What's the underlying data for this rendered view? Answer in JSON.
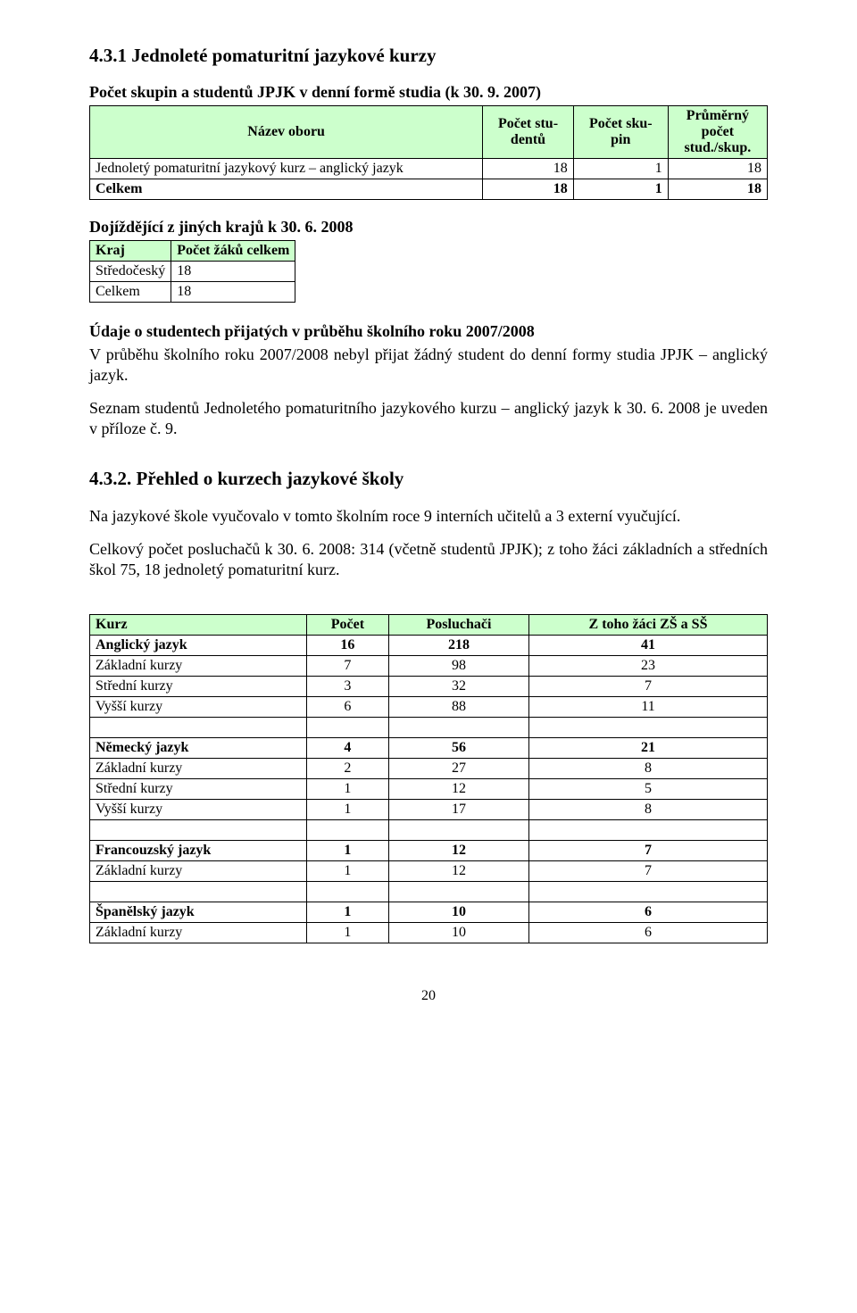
{
  "colors": {
    "header_bg": "#ccffcc",
    "text": "#000000",
    "border": "#000000",
    "background": "#ffffff"
  },
  "section_title": "4.3.1 Jednoleté pomaturitní jazykové kurzy",
  "lead1": "Počet skupin a studentů JPJK v denní formě studia (k 30. 9. 2007)",
  "table1": {
    "headers": [
      "Název oboru",
      "Počet stu-dentů",
      "Počet sku-pin",
      "Průměrný počet stud./skup."
    ],
    "rows": [
      {
        "cells": [
          "Jednoletý pomaturitní jazykový kurz – anglický jazyk",
          "18",
          "1",
          "18"
        ],
        "bold": false
      },
      {
        "cells": [
          "Celkem",
          "18",
          "1",
          "18"
        ],
        "bold": true
      }
    ]
  },
  "lead2": "Dojíždějící z jiných krajů k 30. 6. 2008",
  "table2": {
    "headers": [
      "Kraj",
      "Počet žáků celkem"
    ],
    "rows": [
      [
        "Středočeský",
        "18"
      ],
      [
        "Celkem",
        "18"
      ]
    ]
  },
  "sub_heading": "Údaje o studentech přijatých v průběhu školního roku 2007/2008",
  "para1": "V průběhu školního roku 2007/2008 nebyl přijat žádný student do denní formy studia JPJK – anglický jazyk.",
  "para2": "Seznam studentů Jednoletého pomaturitního jazykového kurzu – anglický jazyk k 30. 6. 2008 je uveden v příloze č. 9.",
  "section_title2": "4.3.2. Přehled o kurzech jazykové školy",
  "para3": "Na jazykové škole vyučovalo v tomto školním roce 9 interních učitelů a 3 externí vyučující.",
  "para4": "Celkový počet posluchačů k 30. 6. 2008: 314 (včetně studentů JPJK); z toho žáci základních a středních škol 75, 18 jednoletý pomaturitní kurz.",
  "table3": {
    "headers": [
      "Kurz",
      "Počet",
      "Posluchači",
      "Z toho žáci ZŠ a SŠ"
    ],
    "rows": [
      {
        "type": "group",
        "cells": [
          "Anglický jazyk",
          "16",
          "218",
          "41"
        ]
      },
      {
        "type": "row",
        "cells": [
          "Základní kurzy",
          "7",
          "98",
          "23"
        ]
      },
      {
        "type": "row",
        "cells": [
          "Střední kurzy",
          "3",
          "32",
          "7"
        ]
      },
      {
        "type": "row",
        "cells": [
          "Vyšší kurzy",
          "6",
          "88",
          "11"
        ]
      },
      {
        "type": "spacer"
      },
      {
        "type": "group",
        "cells": [
          "Německý jazyk",
          "4",
          "56",
          "21"
        ]
      },
      {
        "type": "row",
        "cells": [
          "Základní kurzy",
          "2",
          "27",
          "8"
        ]
      },
      {
        "type": "row",
        "cells": [
          "Střední kurzy",
          "1",
          "12",
          "5"
        ]
      },
      {
        "type": "row",
        "cells": [
          "Vyšší kurzy",
          "1",
          "17",
          "8"
        ]
      },
      {
        "type": "spacer"
      },
      {
        "type": "group",
        "cells": [
          "Francouzský jazyk",
          "1",
          "12",
          "7"
        ]
      },
      {
        "type": "row",
        "cells": [
          "Základní kurzy",
          "1",
          "12",
          "7"
        ]
      },
      {
        "type": "spacer"
      },
      {
        "type": "group",
        "cells": [
          "Španělský jazyk",
          "1",
          "10",
          "6"
        ]
      },
      {
        "type": "row",
        "cells": [
          "Základní kurzy",
          "1",
          "10",
          "6"
        ]
      }
    ]
  },
  "page_number": "20"
}
